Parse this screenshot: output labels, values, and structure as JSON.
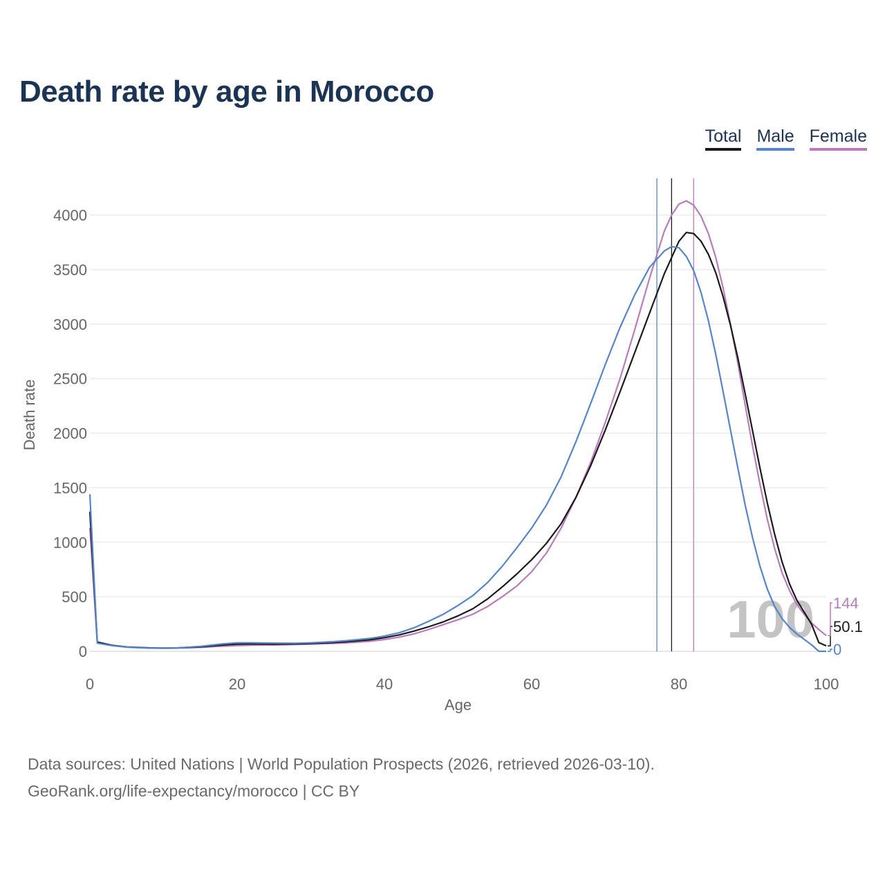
{
  "title": "Death rate by age in Morocco",
  "legend": {
    "total": "Total",
    "male": "Male",
    "female": "Female"
  },
  "footer": {
    "sources": "Data sources: United Nations | World Population Prospects (2026, retrieved 2026-03-10).",
    "credit": "GeoRank.org/life-expectancy/morocco | CC BY"
  },
  "colors": {
    "total": "#1a1a1a",
    "male": "#5585c9",
    "female": "#b97bbd"
  },
  "chart_data": {
    "type": "line",
    "title": "Death rate by age in Morocco",
    "xlabel": "Age",
    "ylabel": "Death rate",
    "xlim": [
      0,
      100
    ],
    "ylim": [
      0,
      4300
    ],
    "xticks": [
      0,
      20,
      40,
      60,
      80,
      100
    ],
    "yticks": [
      0,
      500,
      1000,
      1500,
      2000,
      2500,
      3000,
      3500,
      4000
    ],
    "current_age": "100",
    "series": [
      {
        "name": "Total",
        "key": "total",
        "color": "#1a1a1a",
        "mean_age": 79,
        "end_label": "50.1",
        "points": [
          [
            0,
            1280
          ],
          [
            1,
            85
          ],
          [
            3,
            55
          ],
          [
            5,
            40
          ],
          [
            8,
            32
          ],
          [
            10,
            30
          ],
          [
            12,
            32
          ],
          [
            15,
            40
          ],
          [
            18,
            58
          ],
          [
            20,
            65
          ],
          [
            22,
            68
          ],
          [
            25,
            66
          ],
          [
            28,
            68
          ],
          [
            30,
            72
          ],
          [
            33,
            80
          ],
          [
            35,
            88
          ],
          [
            38,
            105
          ],
          [
            40,
            125
          ],
          [
            42,
            150
          ],
          [
            44,
            185
          ],
          [
            46,
            225
          ],
          [
            48,
            270
          ],
          [
            50,
            325
          ],
          [
            52,
            390
          ],
          [
            54,
            480
          ],
          [
            56,
            590
          ],
          [
            58,
            710
          ],
          [
            60,
            840
          ],
          [
            62,
            990
          ],
          [
            64,
            1170
          ],
          [
            66,
            1410
          ],
          [
            68,
            1700
          ],
          [
            70,
            2030
          ],
          [
            72,
            2380
          ],
          [
            74,
            2740
          ],
          [
            76,
            3100
          ],
          [
            78,
            3460
          ],
          [
            80,
            3760
          ],
          [
            81,
            3840
          ],
          [
            82,
            3830
          ],
          [
            83,
            3760
          ],
          [
            84,
            3640
          ],
          [
            85,
            3470
          ],
          [
            86,
            3250
          ],
          [
            87,
            2990
          ],
          [
            88,
            2690
          ],
          [
            89,
            2360
          ],
          [
            90,
            2020
          ],
          [
            91,
            1680
          ],
          [
            92,
            1360
          ],
          [
            93,
            1070
          ],
          [
            94,
            820
          ],
          [
            95,
            620
          ],
          [
            96,
            470
          ],
          [
            97,
            360
          ],
          [
            98,
            250
          ],
          [
            99,
            80
          ],
          [
            100,
            50.1
          ]
        ]
      },
      {
        "name": "Male",
        "key": "male",
        "color": "#5585c9",
        "mean_age": 77,
        "end_label": "0",
        "points": [
          [
            0,
            1440
          ],
          [
            1,
            75
          ],
          [
            3,
            52
          ],
          [
            5,
            38
          ],
          [
            8,
            30
          ],
          [
            10,
            30
          ],
          [
            12,
            32
          ],
          [
            15,
            45
          ],
          [
            18,
            68
          ],
          [
            20,
            78
          ],
          [
            22,
            78
          ],
          [
            25,
            75
          ],
          [
            28,
            74
          ],
          [
            30,
            78
          ],
          [
            33,
            88
          ],
          [
            35,
            98
          ],
          [
            38,
            118
          ],
          [
            40,
            140
          ],
          [
            42,
            170
          ],
          [
            44,
            215
          ],
          [
            46,
            275
          ],
          [
            48,
            340
          ],
          [
            50,
            420
          ],
          [
            52,
            510
          ],
          [
            54,
            630
          ],
          [
            56,
            780
          ],
          [
            58,
            950
          ],
          [
            60,
            1130
          ],
          [
            62,
            1340
          ],
          [
            64,
            1600
          ],
          [
            66,
            1920
          ],
          [
            68,
            2270
          ],
          [
            70,
            2630
          ],
          [
            72,
            2970
          ],
          [
            74,
            3270
          ],
          [
            76,
            3520
          ],
          [
            78,
            3670
          ],
          [
            79,
            3710
          ],
          [
            80,
            3700
          ],
          [
            81,
            3620
          ],
          [
            82,
            3490
          ],
          [
            83,
            3290
          ],
          [
            84,
            3030
          ],
          [
            85,
            2720
          ],
          [
            86,
            2380
          ],
          [
            87,
            2030
          ],
          [
            88,
            1680
          ],
          [
            89,
            1340
          ],
          [
            90,
            1040
          ],
          [
            91,
            780
          ],
          [
            92,
            570
          ],
          [
            93,
            410
          ],
          [
            94,
            300
          ],
          [
            95,
            220
          ],
          [
            96,
            160
          ],
          [
            97,
            110
          ],
          [
            98,
            60
          ],
          [
            99,
            0
          ],
          [
            100,
            0
          ]
        ]
      },
      {
        "name": "Female",
        "key": "female",
        "color": "#b97bbd",
        "mean_age": 82,
        "end_label": "144",
        "points": [
          [
            0,
            1130
          ],
          [
            1,
            80
          ],
          [
            3,
            55
          ],
          [
            5,
            38
          ],
          [
            8,
            30
          ],
          [
            10,
            28
          ],
          [
            12,
            30
          ],
          [
            15,
            36
          ],
          [
            18,
            46
          ],
          [
            20,
            52
          ],
          [
            22,
            56
          ],
          [
            25,
            58
          ],
          [
            28,
            62
          ],
          [
            30,
            66
          ],
          [
            33,
            72
          ],
          [
            35,
            78
          ],
          [
            38,
            92
          ],
          [
            40,
            108
          ],
          [
            42,
            130
          ],
          [
            44,
            160
          ],
          [
            46,
            200
          ],
          [
            48,
            245
          ],
          [
            50,
            290
          ],
          [
            52,
            340
          ],
          [
            54,
            410
          ],
          [
            56,
            500
          ],
          [
            58,
            600
          ],
          [
            60,
            730
          ],
          [
            62,
            900
          ],
          [
            64,
            1130
          ],
          [
            66,
            1410
          ],
          [
            68,
            1730
          ],
          [
            70,
            2100
          ],
          [
            72,
            2500
          ],
          [
            74,
            2950
          ],
          [
            76,
            3420
          ],
          [
            78,
            3850
          ],
          [
            79,
            4000
          ],
          [
            80,
            4100
          ],
          [
            81,
            4130
          ],
          [
            82,
            4090
          ],
          [
            83,
            3990
          ],
          [
            84,
            3830
          ],
          [
            85,
            3610
          ],
          [
            86,
            3330
          ],
          [
            87,
            3000
          ],
          [
            88,
            2640
          ],
          [
            89,
            2260
          ],
          [
            90,
            1880
          ],
          [
            91,
            1530
          ],
          [
            92,
            1210
          ],
          [
            93,
            940
          ],
          [
            94,
            720
          ],
          [
            95,
            560
          ],
          [
            96,
            430
          ],
          [
            97,
            340
          ],
          [
            98,
            260
          ],
          [
            99,
            200
          ],
          [
            100,
            144
          ]
        ]
      }
    ]
  }
}
